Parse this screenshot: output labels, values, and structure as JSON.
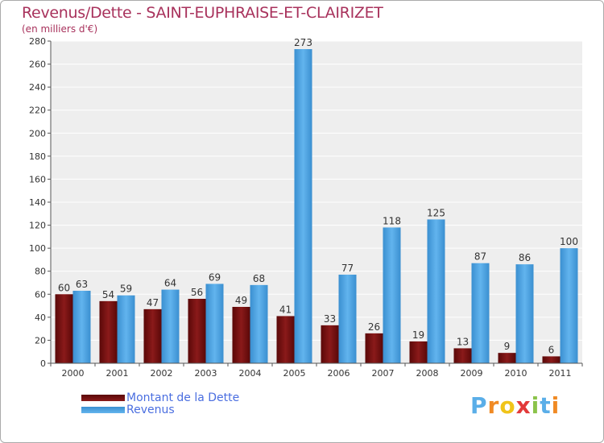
{
  "title": "Revenus/Dette - SAINT-EUPHRAISE-ET-CLAIRIZET",
  "subtitle": "(en milliers d'€)",
  "logo": {
    "text": "Proxiti",
    "colors": [
      "#5aaee8",
      "#f08a24",
      "#f0c419",
      "#e23a3a",
      "#8bc34a",
      "#5aaee8",
      "#f08a24"
    ]
  },
  "colors": {
    "dette": "#7a1010",
    "revenus": "#4aa3e0",
    "title": "#a8325c",
    "legend_text": "#4a6ee0"
  },
  "chart_data": {
    "type": "bar",
    "title": "Revenus/Dette - SAINT-EUPHRAISE-ET-CLAIRIZET",
    "ylabel": "(en milliers d'€)",
    "xlabel": "",
    "ylim": [
      0,
      280
    ],
    "yticks": [
      0,
      20,
      40,
      60,
      80,
      100,
      120,
      140,
      160,
      180,
      200,
      220,
      240,
      260,
      280
    ],
    "grid": true,
    "legend_position": "bottom-left",
    "categories": [
      "2000",
      "2001",
      "2002",
      "2003",
      "2004",
      "2005",
      "2006",
      "2007",
      "2008",
      "2009",
      "2010",
      "2011"
    ],
    "series": [
      {
        "name": "Montant de la Dette",
        "values": [
          60,
          54,
          47,
          56,
          49,
          41,
          33,
          26,
          19,
          13,
          9,
          6
        ]
      },
      {
        "name": "Revenus",
        "values": [
          63,
          59,
          64,
          69,
          68,
          273,
          77,
          118,
          125,
          87,
          86,
          100
        ]
      }
    ]
  }
}
